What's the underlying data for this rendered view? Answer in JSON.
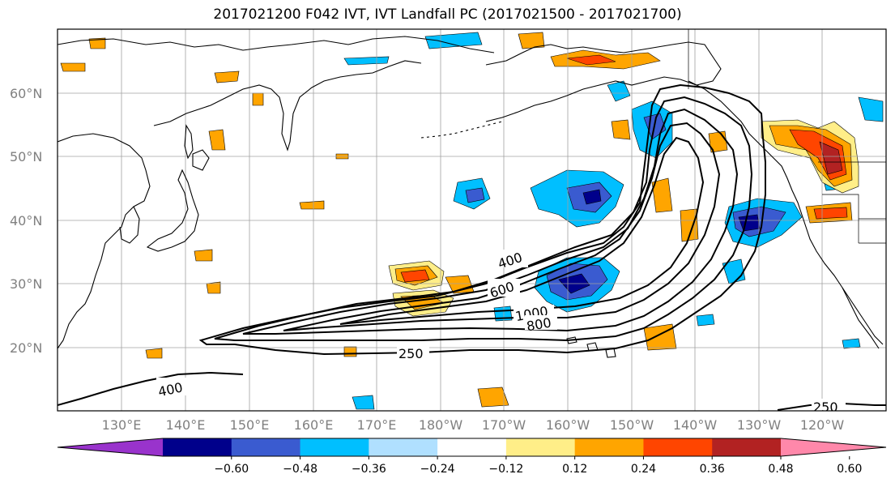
{
  "title": "2017021200 F042 IVT, IVT Landfall PC (2017021500 - 2017021700)",
  "latitude_labels": [
    "60°N",
    "50°N",
    "40°N",
    "30°N",
    "20°N"
  ],
  "longitude_labels": [
    "130°E",
    "140°E",
    "150°E",
    "160°E",
    "170°E",
    "180°W",
    "170°W",
    "160°W",
    "150°W",
    "140°W",
    "130°W",
    "120°W"
  ],
  "contour_labels": [
    "400",
    "600",
    "1000",
    "800",
    "250",
    "400",
    "250"
  ],
  "colorbar": {
    "tick_labels": [
      "−0.60",
      "−0.48",
      "−0.36",
      "−0.24",
      "−0.12",
      "0.12",
      "0.24",
      "0.36",
      "0.48",
      "0.60"
    ],
    "colors": [
      "#9933cc",
      "#00008b",
      "#3a5bd0",
      "#00bfff",
      "#b0e0ff",
      "#ffffff",
      "#ffee88",
      "#ffa500",
      "#ff4500",
      "#b22222",
      "#ff88aa"
    ]
  },
  "colors": {
    "neg_strong": "#00008b",
    "neg_mid": "#3a5bd0",
    "neg_light": "#00bfff",
    "neg_pale": "#b0e0ff",
    "pos_pale": "#ffee88",
    "pos_light": "#ffa500",
    "pos_mid": "#ff4500",
    "pos_strong": "#b22222"
  }
}
